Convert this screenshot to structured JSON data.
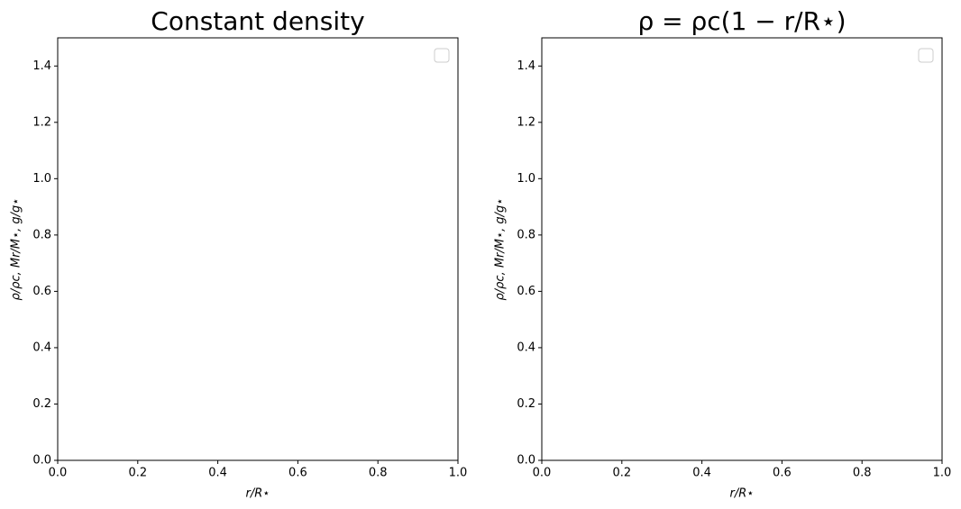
{
  "chart_data": [
    {
      "type": "line",
      "title": "Constant density",
      "xlabel": "r/R⋆",
      "ylabel": "ρ/ρc, Mr/M⋆, g/g⋆",
      "series": [],
      "legend": "upper right",
      "xlim": [
        0,
        1
      ],
      "xticks": [
        {
          "value": 0,
          "label": "0.0"
        },
        0.2,
        0.4,
        0.6,
        0.8,
        {
          "value": 1,
          "label": "1.0"
        }
      ],
      "ylim": [
        0,
        1.5
      ],
      "yticks": [
        {
          "value": 0,
          "label": "0.0"
        },
        0.2,
        0.4,
        0.6,
        0.8,
        {
          "value": 1,
          "label": "1.0"
        },
        1.2,
        1.4
      ]
    },
    {
      "type": "line",
      "title": "ρ = ρc(1 − r/R⋆)",
      "xlabel": "r/R⋆",
      "ylabel": "ρ/ρc, Mr/M⋆, g/g⋆",
      "series": [],
      "legend": "upper right",
      "xlim": [
        0,
        1
      ],
      "xticks": [
        {
          "value": 0,
          "label": "0.0"
        },
        0.2,
        0.4,
        0.6,
        0.8,
        {
          "value": 1,
          "label": "1.0"
        }
      ],
      "ylim": [
        0,
        1.5
      ],
      "yticks": [
        {
          "value": 0,
          "label": "0.0"
        },
        0.2,
        0.4,
        0.6,
        0.8,
        {
          "value": 1,
          "label": "1.0"
        },
        1.2,
        1.4
      ]
    }
  ]
}
